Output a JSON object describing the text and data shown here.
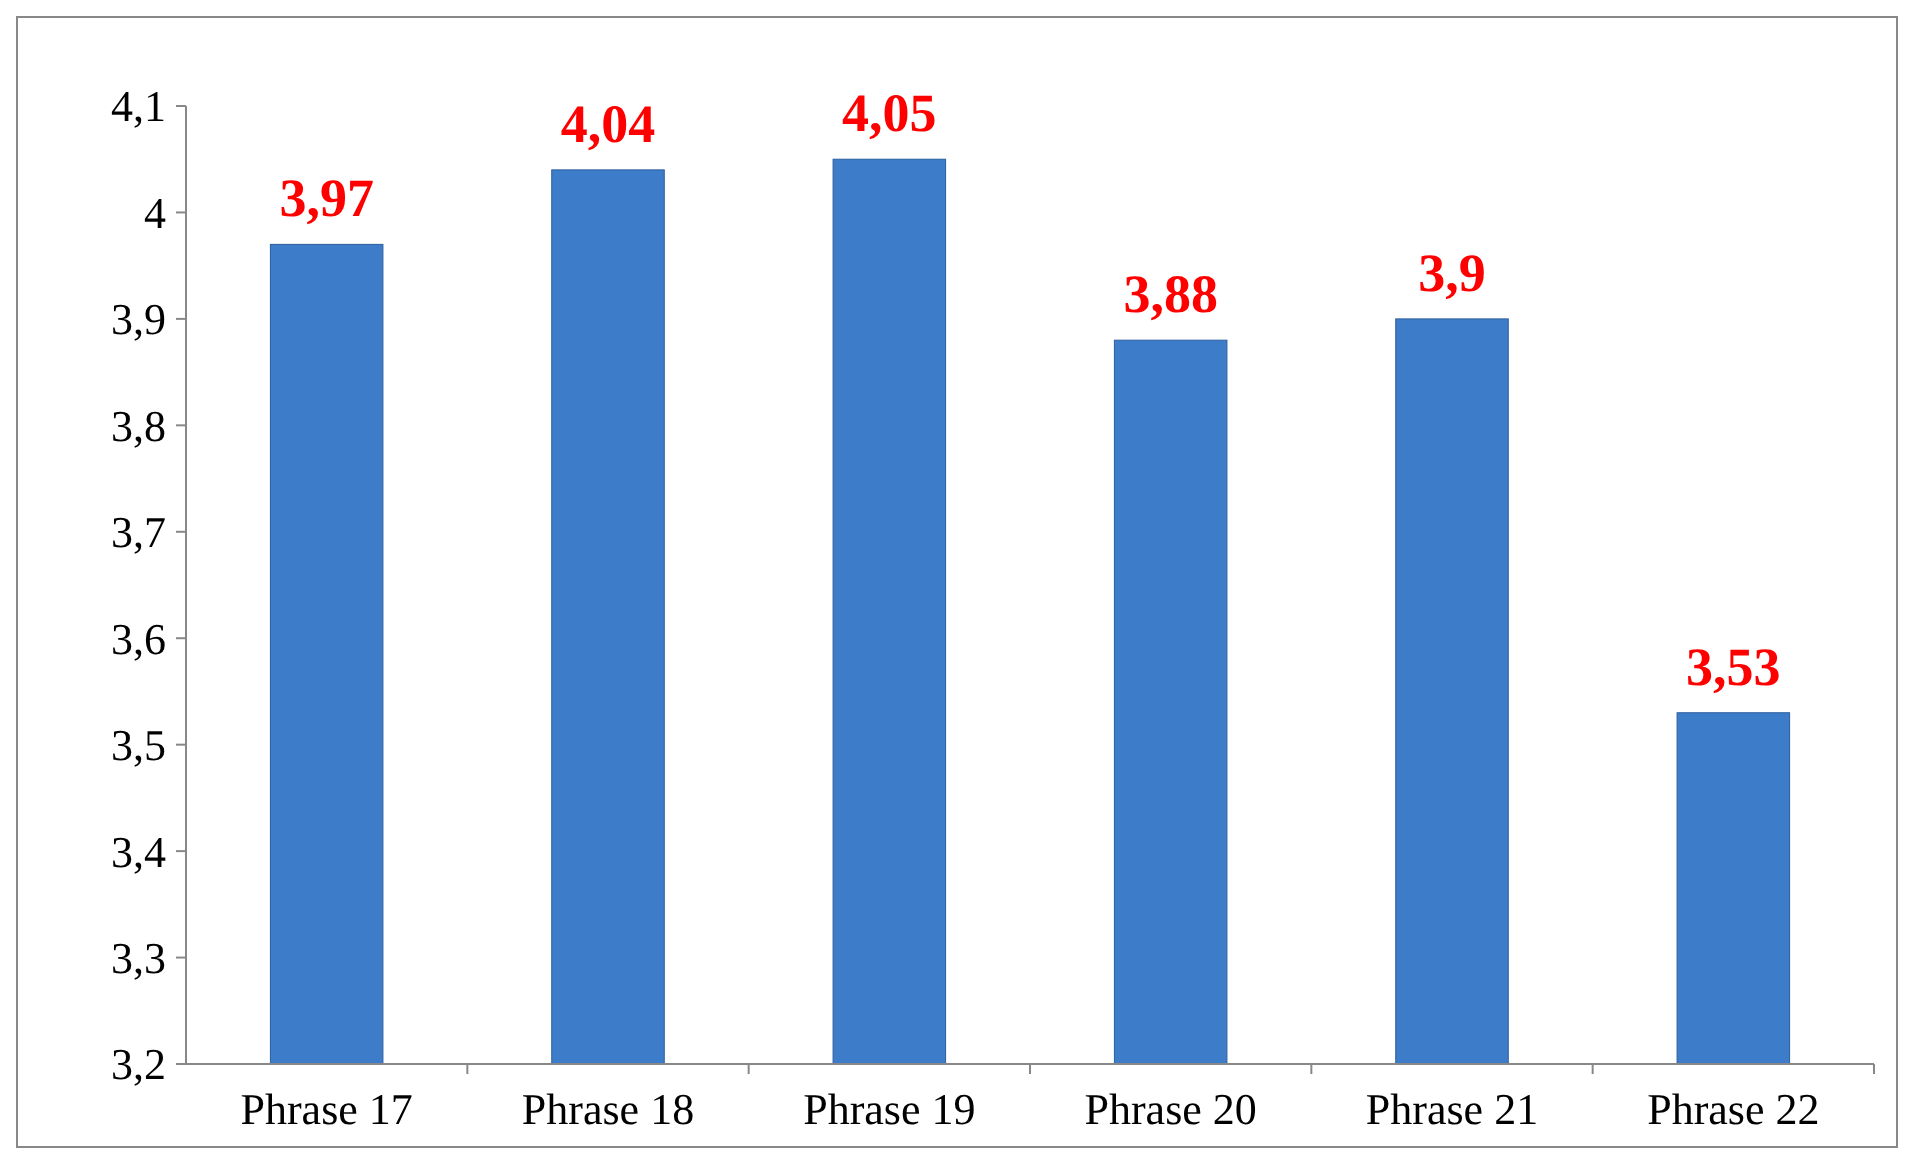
{
  "chart_data": {
    "type": "bar",
    "categories": [
      "Phrase 17",
      "Phrase 18",
      "Phrase 19",
      "Phrase 20",
      "Phrase 21",
      "Phrase 22"
    ],
    "values": [
      3.97,
      4.04,
      4.05,
      3.88,
      3.9,
      3.53
    ],
    "value_labels": [
      "3,97",
      "4,04",
      "4,05",
      "3,88",
      "3,9",
      "3,53"
    ],
    "color": "#3d7cc9",
    "ylim": [
      3.2,
      4.1
    ],
    "yticks": [
      {
        "value": 3.2,
        "label": "3,2"
      },
      {
        "value": 3.3,
        "label": "3,3"
      },
      {
        "value": 3.4,
        "label": "3,4"
      },
      {
        "value": 3.5,
        "label": "3,5"
      },
      {
        "value": 3.6,
        "label": "3,6"
      },
      {
        "value": 3.7,
        "label": "3,7"
      },
      {
        "value": 3.8,
        "label": "3,8"
      },
      {
        "value": 3.9,
        "label": "3,9"
      },
      {
        "value": 4,
        "label": "4"
      },
      {
        "value": 4.1,
        "label": "4,1"
      }
    ],
    "grid": false
  }
}
